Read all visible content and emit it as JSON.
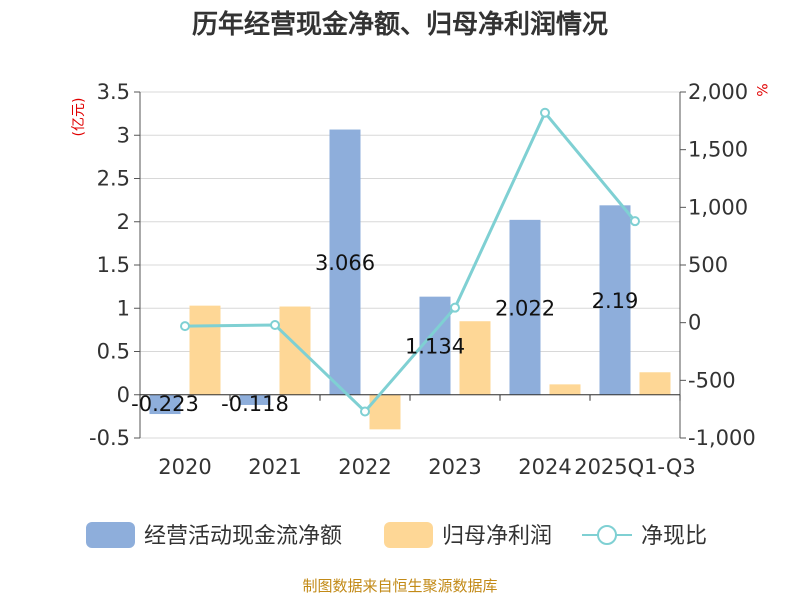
{
  "title": "历年经营现金净额、归母净利润情况",
  "source": "制图数据来自恒生聚源数据库",
  "left_unit": "(亿元)",
  "right_unit": "%",
  "colors": {
    "operating_cash": "#8eaedb",
    "net_profit": "#fed796",
    "ratio": "#7fd0d3"
  },
  "chart_data": {
    "type": "bar",
    "categories": [
      "2020",
      "2021",
      "2022",
      "2023",
      "2024",
      "2025Q1-Q3"
    ],
    "y_left": {
      "min": -0.5,
      "max": 3.5,
      "ticks": [
        "-0.5",
        "0",
        "0.5",
        "1",
        "1.5",
        "2",
        "2.5",
        "3",
        "3.5"
      ]
    },
    "y_right": {
      "min": -1000,
      "max": 2000,
      "ticks": [
        "-1,000",
        "-500",
        "0",
        "500",
        "1,000",
        "1,500",
        "2,000"
      ]
    },
    "grid": true,
    "legend_position": "bottom",
    "series": [
      {
        "name": "经营活动现金流净额",
        "type": "bar",
        "axis": "left",
        "values": [
          -0.223,
          -0.118,
          3.066,
          1.134,
          2.022,
          2.19
        ],
        "labels": [
          "-0.223",
          "-0.118",
          "3.066",
          "1.134",
          "2.022",
          "2.19"
        ]
      },
      {
        "name": "归母净利润",
        "type": "bar",
        "axis": "left",
        "values": [
          1.03,
          1.02,
          -0.4,
          0.85,
          0.12,
          0.26
        ]
      },
      {
        "name": "净现比",
        "type": "line",
        "axis": "right",
        "values": [
          -30,
          -20,
          -770,
          130,
          1820,
          880
        ]
      }
    ]
  }
}
